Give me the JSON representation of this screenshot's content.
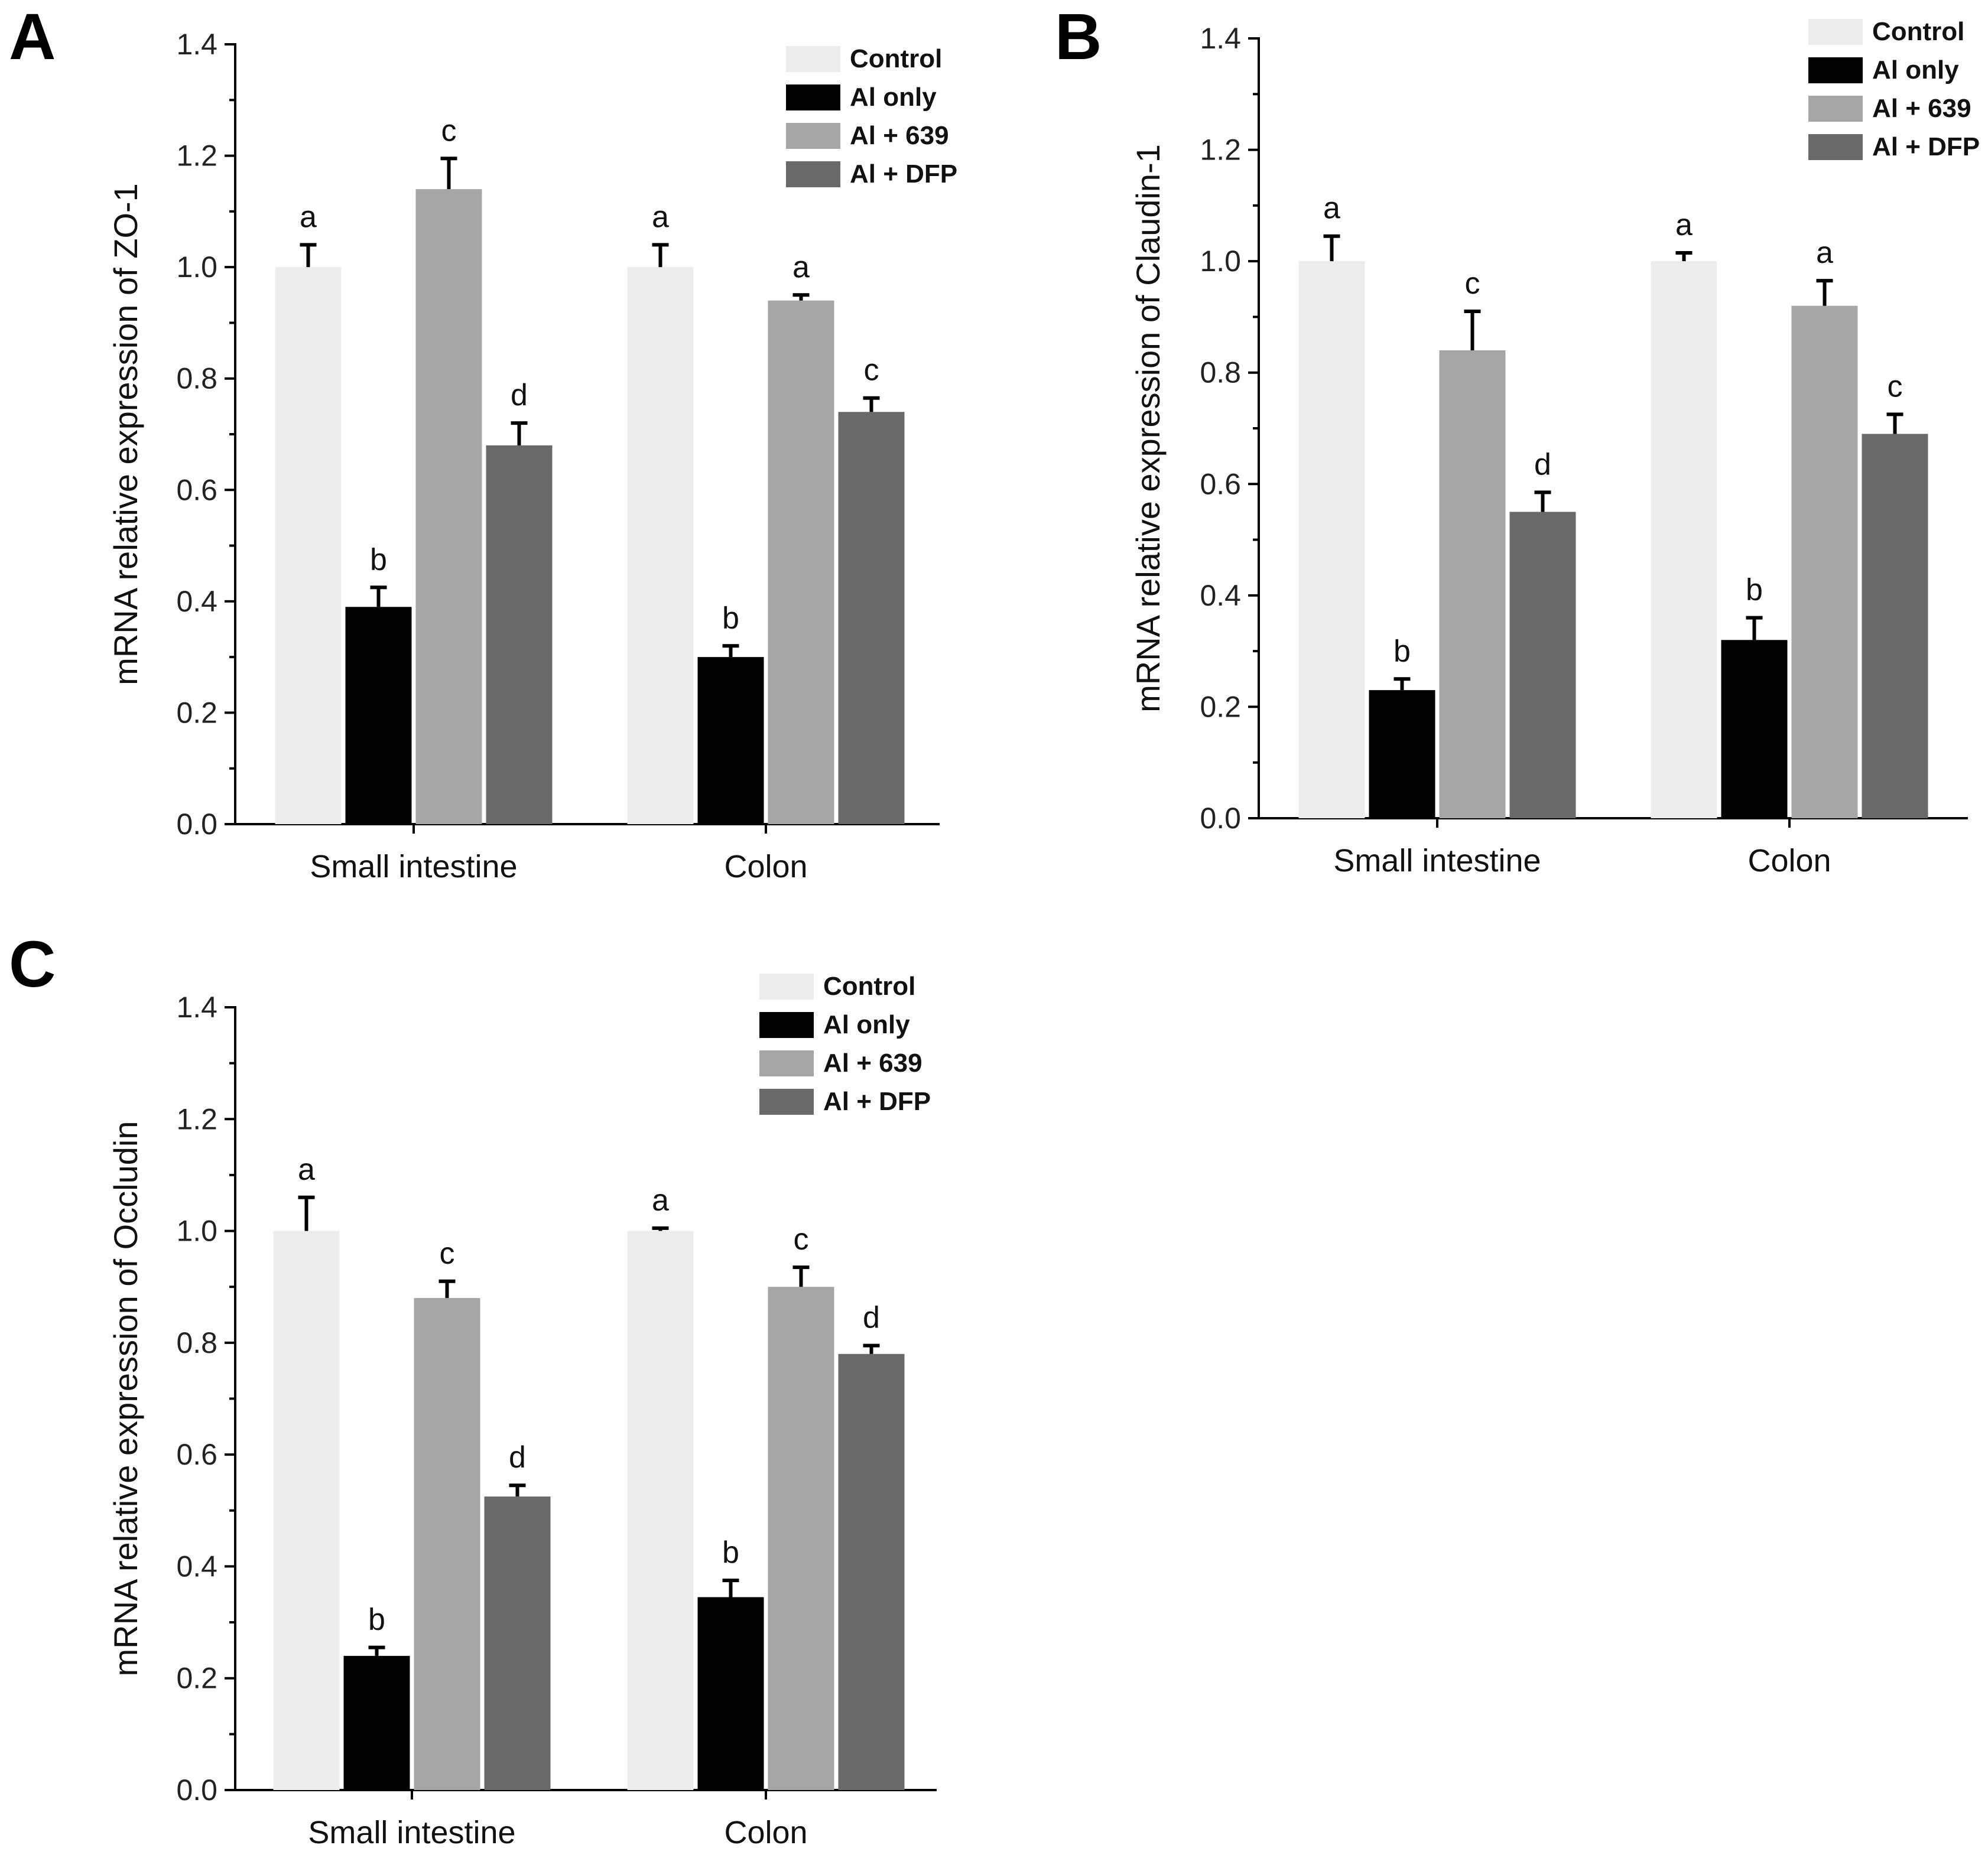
{
  "chart_data": [
    {
      "type": "bar",
      "panel": "A",
      "title": "",
      "xlabel": "",
      "ylabel": "mRNA relative expression of ZO-1",
      "ylim": [
        0,
        1.4
      ],
      "yticks": [
        "0.0",
        "0.2",
        "0.4",
        "0.6",
        "0.8",
        "1.0",
        "1.2",
        "1.4"
      ],
      "categories": [
        "Small intestine",
        "Colon"
      ],
      "series": [
        {
          "name": "Control",
          "color": "#ececec",
          "values": [
            1.0,
            1.0
          ],
          "errors": [
            0.04,
            0.04
          ],
          "letters": [
            "a",
            "a"
          ]
        },
        {
          "name": "Al only",
          "color": "#000000",
          "values": [
            0.39,
            0.3
          ],
          "errors": [
            0.035,
            0.02
          ],
          "letters": [
            "b",
            "b"
          ]
        },
        {
          "name": "Al + 639",
          "color": "#a6a6a6",
          "values": [
            1.14,
            0.94
          ],
          "errors": [
            0.055,
            0.01
          ],
          "letters": [
            "c",
            "a"
          ]
        },
        {
          "name": "Al + DFP",
          "color": "#696969",
          "values": [
            0.68,
            0.74
          ],
          "errors": [
            0.04,
            0.025
          ],
          "letters": [
            "d",
            "c"
          ]
        }
      ],
      "legend": "top-right"
    },
    {
      "type": "bar",
      "panel": "B",
      "title": "",
      "xlabel": "",
      "ylabel": "mRNA relative expression of Claudin-1",
      "ylim": [
        0,
        1.4
      ],
      "yticks": [
        "0.0",
        "0.2",
        "0.4",
        "0.6",
        "0.8",
        "1.0",
        "1.2",
        "1.4"
      ],
      "categories": [
        "Small intestine",
        "Colon"
      ],
      "series": [
        {
          "name": "Control",
          "color": "#ececec",
          "values": [
            1.0,
            1.0
          ],
          "errors": [
            0.045,
            0.015
          ],
          "letters": [
            "a",
            "a"
          ]
        },
        {
          "name": "Al only",
          "color": "#000000",
          "values": [
            0.23,
            0.32
          ],
          "errors": [
            0.02,
            0.04
          ],
          "letters": [
            "b",
            "b"
          ]
        },
        {
          "name": "Al + 639",
          "color": "#a6a6a6",
          "values": [
            0.84,
            0.92
          ],
          "errors": [
            0.07,
            0.045
          ],
          "letters": [
            "c",
            "a"
          ]
        },
        {
          "name": "Al + DFP",
          "color": "#696969",
          "values": [
            0.55,
            0.69
          ],
          "errors": [
            0.035,
            0.035
          ],
          "letters": [
            "d",
            "c"
          ]
        }
      ],
      "legend": "top-right"
    },
    {
      "type": "bar",
      "panel": "C",
      "title": "",
      "xlabel": "",
      "ylabel": "mRNA relative expression of Occludin",
      "ylim": [
        0,
        1.4
      ],
      "yticks": [
        "0.0",
        "0.2",
        "0.4",
        "0.6",
        "0.8",
        "1.0",
        "1.2",
        "1.4"
      ],
      "categories": [
        "Small intestine",
        "Colon"
      ],
      "series": [
        {
          "name": "Control",
          "color": "#ececec",
          "values": [
            1.0,
            1.0
          ],
          "errors": [
            0.06,
            0.005
          ],
          "letters": [
            "a",
            "a"
          ]
        },
        {
          "name": "Al only",
          "color": "#000000",
          "values": [
            0.24,
            0.345
          ],
          "errors": [
            0.015,
            0.03
          ],
          "letters": [
            "b",
            "b"
          ]
        },
        {
          "name": "Al + 639",
          "color": "#a6a6a6",
          "values": [
            0.88,
            0.9
          ],
          "errors": [
            0.03,
            0.035
          ],
          "letters": [
            "c",
            "c"
          ]
        },
        {
          "name": "Al + DFP",
          "color": "#696969",
          "values": [
            0.525,
            0.78
          ],
          "errors": [
            0.02,
            0.015
          ],
          "letters": [
            "d",
            "d"
          ]
        }
      ],
      "legend": "top-right"
    }
  ]
}
